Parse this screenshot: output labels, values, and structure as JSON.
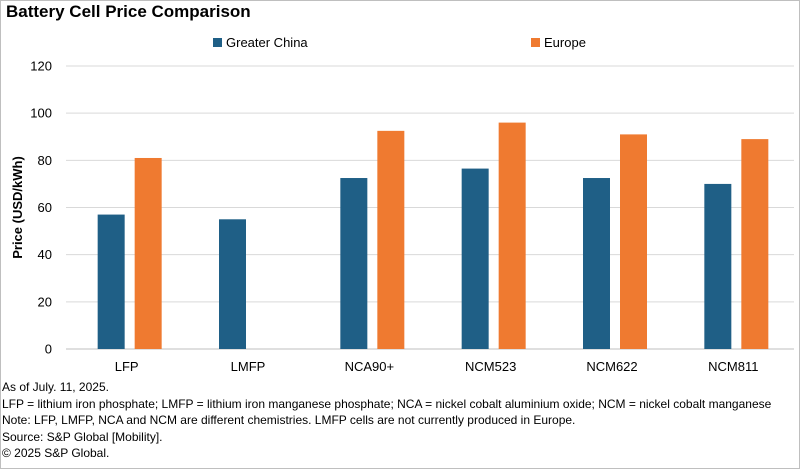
{
  "chart_data": {
    "type": "bar",
    "title": "Battery Cell Price Comparison",
    "xlabel": "",
    "ylabel": "Price (USD/kWh)",
    "ylim": [
      0,
      120
    ],
    "yticks": [
      0,
      20,
      40,
      60,
      80,
      100,
      120
    ],
    "grid": true,
    "legend_position": "top",
    "categories": [
      "LFP",
      "LMFP",
      "NCA90+",
      "NCM523",
      "NCM622",
      "NCM811"
    ],
    "series": [
      {
        "name": "Greater China",
        "color": "#1f5f86",
        "values": [
          57,
          55,
          72.5,
          76.5,
          72.5,
          70
        ]
      },
      {
        "name": "Europe",
        "color": "#ef7a30",
        "values": [
          81,
          null,
          92.5,
          96,
          91,
          89
        ]
      }
    ]
  },
  "notes": {
    "as_of": "As of July. 11, 2025.",
    "definitions": "LFP = lithium iron phosphate; LMFP = lithium iron manganese phosphate; NCA = nickel cobalt aluminium oxide; NCM = nickel cobalt manganese",
    "note": "Note: LFP, LMFP, NCA and NCM are different chemistries. LMFP cells are not currently produced in Europe.",
    "source": "Source: S&P Global [Mobility].",
    "copyright": "© 2025 S&P Global."
  }
}
